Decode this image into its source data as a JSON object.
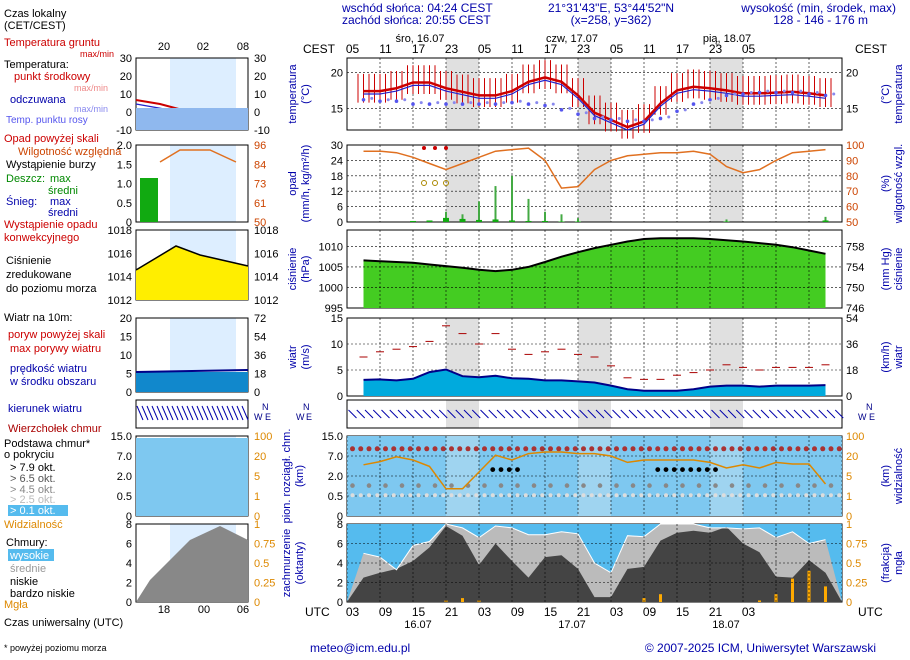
{
  "header": {
    "sunrise": "wschód słońca: 04:24 CEST",
    "sunset": "zachód słońca: 20:55 CEST",
    "coords": "21°31'43\"E, 53°44'52\"N",
    "grid": "(x=258,  y=362)",
    "elevation_title": "wysokość (min, środek, max)",
    "elevation_values": "128 - 146 - 176 m"
  },
  "time_axis": {
    "tz_local": "CEST",
    "tz_utc": "UTC",
    "local_hours": [
      "05",
      "11",
      "17",
      "23",
      "05",
      "11",
      "17",
      "23",
      "05",
      "11",
      "17",
      "23",
      "05"
    ],
    "utc_hours": [
      "03",
      "09",
      "15",
      "21",
      "03",
      "09",
      "15",
      "21",
      "03",
      "09",
      "15",
      "21",
      "03"
    ],
    "day_labels_top": [
      "śro, 16.07",
      "czw, 17.07",
      "pią, 18.07"
    ],
    "day_labels_bottom": [
      "16.07",
      "17.07",
      "18.07"
    ]
  },
  "legend": {
    "local_time": "Czas lokalny",
    "local_time_sub": "(CET/CEST)",
    "hours_top": [
      "20",
      "02",
      "08"
    ],
    "hours_bottom": [
      "18",
      "00",
      "06"
    ],
    "utc_time": "Czas uniwersalny (UTC)",
    "footnote": "* powyżej poziomu morza",
    "temp": {
      "ground": "Temperatura gruntu",
      "ground_sub": "max/min",
      "title": "Temperatura:",
      "mid": "punkt środkowy",
      "max_min": "max/min",
      "feels": "odczuwana",
      "feels_sub": "max/min",
      "dew": "Temp. punktu rosy",
      "ticks_left": [
        "30",
        "20",
        "10",
        "0",
        "-10"
      ],
      "ticks_right": [
        "30",
        "20",
        "10",
        "0",
        "-10"
      ]
    },
    "precip": {
      "above_scale": "Opad powyżej skali",
      "humidity": "Wilgotność względna",
      "storm": "Wystąpienie burzy",
      "rain": "Deszcz:",
      "rain_max": "max",
      "rain_mid": "średni",
      "snow": "Śnieg:",
      "snow_max": "max",
      "snow_mid": "średni",
      "occurrence": "Wystąpienie opadu",
      "occurrence2": "konwekcyjnego",
      "ticks_left": [
        "2.0",
        "1.5",
        "1.0",
        "0.5",
        "0"
      ],
      "ticks_right": [
        "96",
        "84",
        "73",
        "61",
        "50"
      ]
    },
    "pressure": {
      "line1": "Ciśnienie",
      "line2": "zredukowane",
      "line3": "do poziomu morza",
      "ticks_left": [
        "1018",
        "1016",
        "1014",
        "1012"
      ],
      "ticks_right": [
        "1018",
        "1016",
        "1014",
        "1012"
      ]
    },
    "wind": {
      "title": "Wiatr na 10m:",
      "gust_above": "poryw powyżej skali",
      "gust": "max porywy wiatru",
      "speed": "prędkość wiatru",
      "speed2": "w środku obszaru",
      "ticks_left": [
        "20",
        "15",
        "10",
        "5",
        "0"
      ],
      "ticks_right": [
        "72",
        "54",
        "36",
        "18",
        "0"
      ],
      "direction": "kierunek wiatru"
    },
    "clouds": {
      "top": "Wierzchołek chmur",
      "base": "Podstawa chmur*",
      "base2": "o pokryciu",
      "c79": "> 7.9 okt.",
      "c65": "> 6.5 okt.",
      "c45": "> 4.5 okt.",
      "c25": "> 2.5 okt.",
      "c01": "> 0.1 okt.",
      "vis": "Widzialność",
      "ticks_left": [
        "15.0",
        "7.0",
        "2.0",
        "0.5",
        "0"
      ],
      "ticks_right": [
        "100",
        "20",
        "5",
        "1",
        "0"
      ]
    },
    "cover": {
      "title": "Chmury:",
      "high": "wysokie",
      "mid": "średnie",
      "low": "niskie",
      "vlow": "bardzo niskie",
      "fog": "Mgła",
      "ticks_left": [
        "8",
        "6",
        "4",
        "2",
        "0"
      ],
      "ticks_right": [
        "1",
        "0.75",
        "0.5",
        "0.25",
        "0"
      ]
    }
  },
  "panels": {
    "temp": {
      "ylabel_left": "temperatura",
      "unit_left": "(°C)",
      "ylabel_right": "temperatura",
      "unit_right": "(°C)",
      "ticks": [
        "20",
        "15"
      ]
    },
    "precip": {
      "ylabel_left": "opad",
      "unit_left": "(mm/h, kg/m²/h)",
      "ylabel_right": "wilgotność wzgl.",
      "unit_right": "(%)",
      "ticks_left": [
        "30",
        "24",
        "18",
        "12",
        "6",
        "0"
      ],
      "ticks_right": [
        "100",
        "90",
        "80",
        "70",
        "60",
        "50"
      ]
    },
    "pressure": {
      "ylabel_left": "ciśnienie",
      "unit_left": "(hPa)",
      "ylabel_right": "ciśnienie",
      "unit_right": "(mm Hg)",
      "ticks_left": [
        "1010",
        "1005",
        "1000",
        "995"
      ],
      "ticks_right": [
        "758",
        "754",
        "750",
        "746"
      ]
    },
    "wind": {
      "ylabel_left": "wiatr",
      "unit_left": "(m/s)",
      "ylabel_right": "wiatr",
      "unit_right": "(km/h)",
      "ticks_left": [
        "15",
        "10",
        "5",
        "0"
      ],
      "ticks_right": [
        "54",
        "36",
        "18",
        "0"
      ]
    },
    "clouds": {
      "ylabel_left": "pion. rozciągł. chm.",
      "unit_left": "(km)",
      "ylabel_right": "widzialność",
      "unit_right": "(km)",
      "ticks_left": [
        "15.0",
        "7.0",
        "2.0",
        "0.5",
        "0"
      ],
      "ticks_right": [
        "100",
        "20",
        "5",
        "1",
        "0"
      ]
    },
    "cover": {
      "ylabel_left": "zachmurzenie",
      "unit_left": "(oktanty)",
      "ylabel_right": "mgła",
      "unit_right": "(frakcja)",
      "ticks_left": [
        "8",
        "6",
        "4",
        "2",
        "0"
      ],
      "ticks_right": [
        "1",
        "0.75",
        "0.5",
        "0.25",
        "0"
      ]
    }
  },
  "footer": {
    "email": "meteo@icm.edu.pl",
    "copyright": "© 2007-2025 ICM, Uniwersytet Warszawski"
  },
  "colors": {
    "temp_line": "#cc0000",
    "dew": "#5555ee",
    "humidity": "#e07020",
    "pressure_line": "#000000",
    "pressure_fill": "#44cc22",
    "wind": "#000088",
    "wind_fill": "#00aadd",
    "gust": "#aa0000",
    "sky": "#7ec8f0",
    "night": "#e0e0e0"
  },
  "chart_data": [
    {
      "name": "temperature",
      "type": "line",
      "x": [
        3,
        6,
        9,
        12,
        15,
        18,
        21,
        24,
        27,
        30,
        33,
        36,
        39,
        42,
        45,
        48,
        51,
        54,
        57,
        60,
        63,
        66,
        69,
        72,
        75,
        78,
        81,
        84,
        87
      ],
      "series": [
        {
          "name": "punkt środkowy",
          "values": [
            17.4,
            17.4,
            17.8,
            18.6,
            18.6,
            17.8,
            17.3,
            16.8,
            16.8,
            17.4,
            18.7,
            19.3,
            18.7,
            16.8,
            14.4,
            13.4,
            12.4,
            13.2,
            15.7,
            17.5,
            18.0,
            17.8,
            17.5,
            17.1,
            17.1,
            17.2,
            17.3,
            17.1,
            16.8
          ]
        },
        {
          "name": "Temp. punktu rosy",
          "values": [
            16.2,
            16.0,
            16.0,
            15.6,
            15.6,
            15.6,
            15.6,
            15.6,
            15.6,
            15.8,
            15.6,
            15.4,
            14.8,
            14.2,
            13.6,
            13.4,
            13.2,
            13.2,
            13.6,
            14.6,
            15.6,
            16.2,
            16.8,
            17.0,
            17.2,
            17.2,
            17.2,
            17.0,
            16.8
          ]
        }
      ],
      "ylim": [
        12,
        22
      ]
    },
    {
      "name": "precipitation",
      "type": "bar",
      "x": [
        3,
        6,
        9,
        12,
        15,
        18,
        21,
        24,
        27,
        30,
        33,
        36,
        39,
        42,
        45,
        48,
        51,
        54,
        57,
        60,
        63,
        66,
        69,
        72,
        75,
        78,
        81,
        84,
        87
      ],
      "series": [
        {
          "name": "Deszcz średni",
          "values": [
            0,
            0,
            0,
            0.2,
            0.3,
            0.8,
            0.6,
            0.4,
            0.5,
            0.3,
            0.2,
            0.2,
            0.1,
            0.1,
            0,
            0,
            0,
            0,
            0,
            0,
            0,
            0,
            0.1,
            0,
            0,
            0,
            0,
            0,
            0.3
          ]
        },
        {
          "name": "Deszcz max",
          "values": [
            0,
            0,
            0,
            0,
            0,
            4,
            3,
            8,
            14,
            18,
            9,
            4,
            3,
            1.5,
            0,
            0,
            0,
            0,
            0,
            0,
            0,
            0,
            1,
            0,
            0,
            0,
            0,
            0,
            2
          ]
        },
        {
          "name": "Wilgotność względna",
          "values": [
            96,
            96,
            95,
            92,
            88,
            84,
            88,
            92,
            96,
            97,
            98,
            90,
            72,
            73,
            84,
            90,
            93,
            94,
            95,
            95,
            96,
            94,
            86,
            82,
            84,
            90,
            95,
            96,
            97
          ]
        }
      ],
      "ylim": [
        0,
        30
      ]
    },
    {
      "name": "pressure",
      "type": "area",
      "x": [
        3,
        6,
        9,
        12,
        15,
        18,
        21,
        24,
        27,
        30,
        33,
        36,
        39,
        42,
        45,
        48,
        51,
        54,
        57,
        60,
        63,
        66,
        69,
        72,
        75,
        78,
        81,
        84,
        87
      ],
      "series": [
        {
          "name": "Ciśnienie",
          "values": [
            1006.6,
            1006.4,
            1006.2,
            1006.0,
            1005.6,
            1005.2,
            1004.8,
            1004.3,
            1004.0,
            1004.3,
            1005.0,
            1006.2,
            1007.5,
            1008.6,
            1009.6,
            1010.4,
            1011.2,
            1011.8,
            1012.0,
            1012.0,
            1012.0,
            1011.8,
            1011.5,
            1011.2,
            1010.8,
            1010.4,
            1009.8,
            1009.0,
            1008.2
          ]
        }
      ],
      "ylim": [
        995,
        1014
      ]
    },
    {
      "name": "wind",
      "type": "area",
      "x": [
        3,
        6,
        9,
        12,
        15,
        18,
        21,
        24,
        27,
        30,
        33,
        36,
        39,
        42,
        45,
        48,
        51,
        54,
        57,
        60,
        63,
        66,
        69,
        72,
        75,
        78,
        81,
        84,
        87
      ],
      "series": [
        {
          "name": "prędkość wiatru",
          "values": [
            3.1,
            3.2,
            3.0,
            3.3,
            4.6,
            5.1,
            3.8,
            3.6,
            3.9,
            3.4,
            3.3,
            3.0,
            3.0,
            2.8,
            2.6,
            2.0,
            1.3,
            1.0,
            1.0,
            1.0,
            1.3,
            1.8,
            2.0,
            2.0,
            1.8,
            2.0,
            2.0,
            2.0,
            2.1
          ]
        },
        {
          "name": "max porywy wiatru",
          "values": [
            7.5,
            8.5,
            9.0,
            9.5,
            10.5,
            13.5,
            12.0,
            10.0,
            12.0,
            9.0,
            8.0,
            8.5,
            9.0,
            8.0,
            7.5,
            5.8,
            3.5,
            3.2,
            3.2,
            4.0,
            4.5,
            5.0,
            6.0,
            5.5,
            5.0,
            5.5,
            5.5,
            5.5,
            6.0
          ]
        }
      ],
      "ylim": [
        0,
        15
      ]
    },
    {
      "name": "cloud_cover",
      "type": "area",
      "x": [
        3,
        6,
        9,
        12,
        15,
        18,
        21,
        24,
        27,
        30,
        33,
        36,
        39,
        42,
        45,
        48,
        51,
        54,
        57,
        60,
        63,
        66,
        69,
        72,
        75,
        78,
        81,
        84,
        87
      ],
      "series": [
        {
          "name": "niskie",
          "values": [
            2.5,
            3.0,
            3.4,
            4.2,
            5.6,
            7.8,
            6.8,
            3.8,
            6.0,
            4.2,
            2.5,
            4.6,
            4.8,
            3.4,
            0.5,
            0.5,
            3.4,
            3.6,
            6.3,
            7.1,
            7.3,
            7.1,
            7.7,
            6.0,
            5.1,
            2.6,
            2.5,
            4.3,
            3.0
          ]
        },
        {
          "name": "wysokie",
          "values": [
            5.0,
            4.6,
            3.3,
            5.8,
            6.2,
            8.0,
            7.6,
            6.6,
            7.8,
            7.6,
            6.9,
            6.9,
            7.2,
            7.0,
            4.0,
            3.0,
            6.8,
            6.7,
            8.0,
            8.0,
            8.0,
            7.6,
            7.6,
            7.5,
            7.6,
            6.6,
            7.2,
            6.0,
            6.4
          ]
        },
        {
          "name": "Mgła",
          "values": [
            0,
            0,
            0,
            0,
            0,
            0.02,
            0.05,
            0.02,
            0,
            0,
            0,
            0,
            0,
            0,
            0,
            0,
            0,
            0.05,
            0.1,
            0,
            0,
            0,
            0,
            0,
            0.02,
            0.1,
            0.3,
            0.4,
            0.2
          ]
        }
      ],
      "ylim": [
        0,
        8
      ]
    }
  ]
}
